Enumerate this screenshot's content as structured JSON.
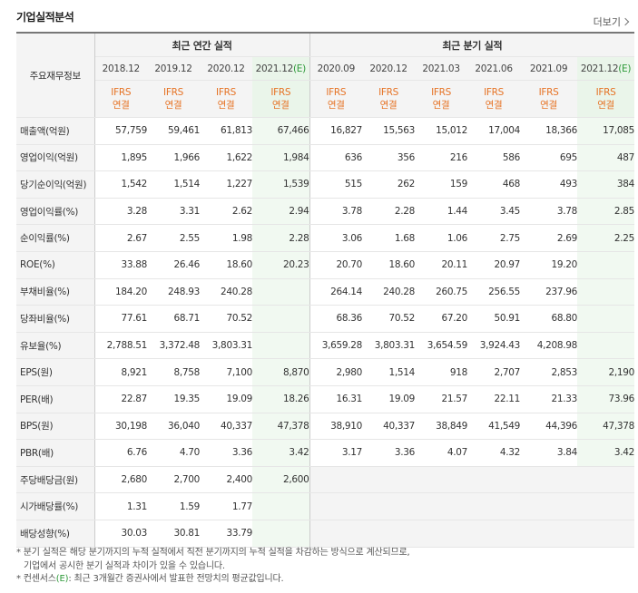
{
  "title": "기업실적분석",
  "more_label": "더보기",
  "table": {
    "row_label_header": "주요재무정보",
    "group_annual": "최근 연간 실적",
    "group_quarterly": "최근 분기 실적",
    "periods": [
      {
        "label": "2018.12",
        "est": ""
      },
      {
        "label": "2019.12",
        "est": ""
      },
      {
        "label": "2020.12",
        "est": ""
      },
      {
        "label": "2021.12",
        "est": "(E)"
      },
      {
        "label": "2020.09",
        "est": ""
      },
      {
        "label": "2020.12",
        "est": ""
      },
      {
        "label": "2021.03",
        "est": ""
      },
      {
        "label": "2021.06",
        "est": ""
      },
      {
        "label": "2021.09",
        "est": ""
      },
      {
        "label": "2021.12",
        "est": "(E)"
      }
    ],
    "ifrs_line1": "IFRS",
    "ifrs_line2": "연결",
    "rows": [
      {
        "label": "매출액(억원)",
        "values": [
          "57,759",
          "59,461",
          "61,813",
          "67,466",
          "16,827",
          "15,563",
          "15,012",
          "17,004",
          "18,366",
          "17,085"
        ]
      },
      {
        "label": "영업이익(억원)",
        "values": [
          "1,895",
          "1,966",
          "1,622",
          "1,984",
          "636",
          "356",
          "216",
          "586",
          "695",
          "487"
        ]
      },
      {
        "label": "당기순이익(억원)",
        "values": [
          "1,542",
          "1,514",
          "1,227",
          "1,539",
          "515",
          "262",
          "159",
          "468",
          "493",
          "384"
        ]
      },
      {
        "label": "영업이익률(%)",
        "values": [
          "3.28",
          "3.31",
          "2.62",
          "2.94",
          "3.78",
          "2.28",
          "1.44",
          "3.45",
          "3.78",
          "2.85"
        ]
      },
      {
        "label": "순이익률(%)",
        "values": [
          "2.67",
          "2.55",
          "1.98",
          "2.28",
          "3.06",
          "1.68",
          "1.06",
          "2.75",
          "2.69",
          "2.25"
        ]
      },
      {
        "label": "ROE(%)",
        "values": [
          "33.88",
          "26.46",
          "18.60",
          "20.23",
          "20.70",
          "18.60",
          "20.11",
          "20.97",
          "19.20",
          ""
        ]
      },
      {
        "label": "부채비율(%)",
        "values": [
          "184.20",
          "248.93",
          "240.28",
          "",
          "264.14",
          "240.28",
          "260.75",
          "256.55",
          "237.96",
          ""
        ]
      },
      {
        "label": "당좌비율(%)",
        "values": [
          "77.61",
          "68.71",
          "70.52",
          "",
          "68.36",
          "70.52",
          "67.20",
          "50.91",
          "68.80",
          ""
        ]
      },
      {
        "label": "유보율(%)",
        "values": [
          "2,788.51",
          "3,372.48",
          "3,803.31",
          "",
          "3,659.28",
          "3,803.31",
          "3,654.59",
          "3,924.43",
          "4,208.98",
          ""
        ]
      },
      {
        "label": "EPS(원)",
        "values": [
          "8,921",
          "8,758",
          "7,100",
          "8,870",
          "2,980",
          "1,514",
          "918",
          "2,707",
          "2,853",
          "2,190"
        ]
      },
      {
        "label": "PER(배)",
        "values": [
          "22.87",
          "19.35",
          "19.09",
          "18.26",
          "16.31",
          "19.09",
          "21.57",
          "22.11",
          "21.33",
          "73.96"
        ]
      },
      {
        "label": "BPS(원)",
        "values": [
          "30,198",
          "36,040",
          "40,337",
          "47,378",
          "38,910",
          "40,337",
          "38,849",
          "41,549",
          "44,396",
          "47,378"
        ]
      },
      {
        "label": "PBR(배)",
        "values": [
          "6.76",
          "4.70",
          "3.36",
          "3.42",
          "3.17",
          "3.36",
          "4.07",
          "4.32",
          "3.84",
          "3.42"
        ]
      },
      {
        "label": "주당배당금(원)",
        "values": [
          "2,680",
          "2,700",
          "2,400",
          "2,600",
          "",
          "",
          "",
          "",
          "",
          ""
        ]
      },
      {
        "label": "시가배당률(%)",
        "values": [
          "1.31",
          "1.59",
          "1.77",
          "",
          "",
          "",
          "",
          "",
          "",
          ""
        ]
      },
      {
        "label": "배당성향(%)",
        "values": [
          "30.03",
          "30.81",
          "33.79",
          "",
          "",
          "",
          "",
          "",
          "",
          ""
        ]
      }
    ]
  },
  "notes": {
    "line1": "* 분기 실적은 해당 분기까지의 누적 실적에서 직전 분기까지의 누적 실적을 차감하는 방식으로 계산되므로,",
    "line2": "기업에서 공시한 분기 실적과 차이가 있을 수 있습니다.",
    "line3_prefix": "* 컨센서스",
    "line3_e": "(E)",
    "line3_suffix": ": 최근 3개월간 증권사에서 발표한 전망치의 평균값입니다."
  }
}
